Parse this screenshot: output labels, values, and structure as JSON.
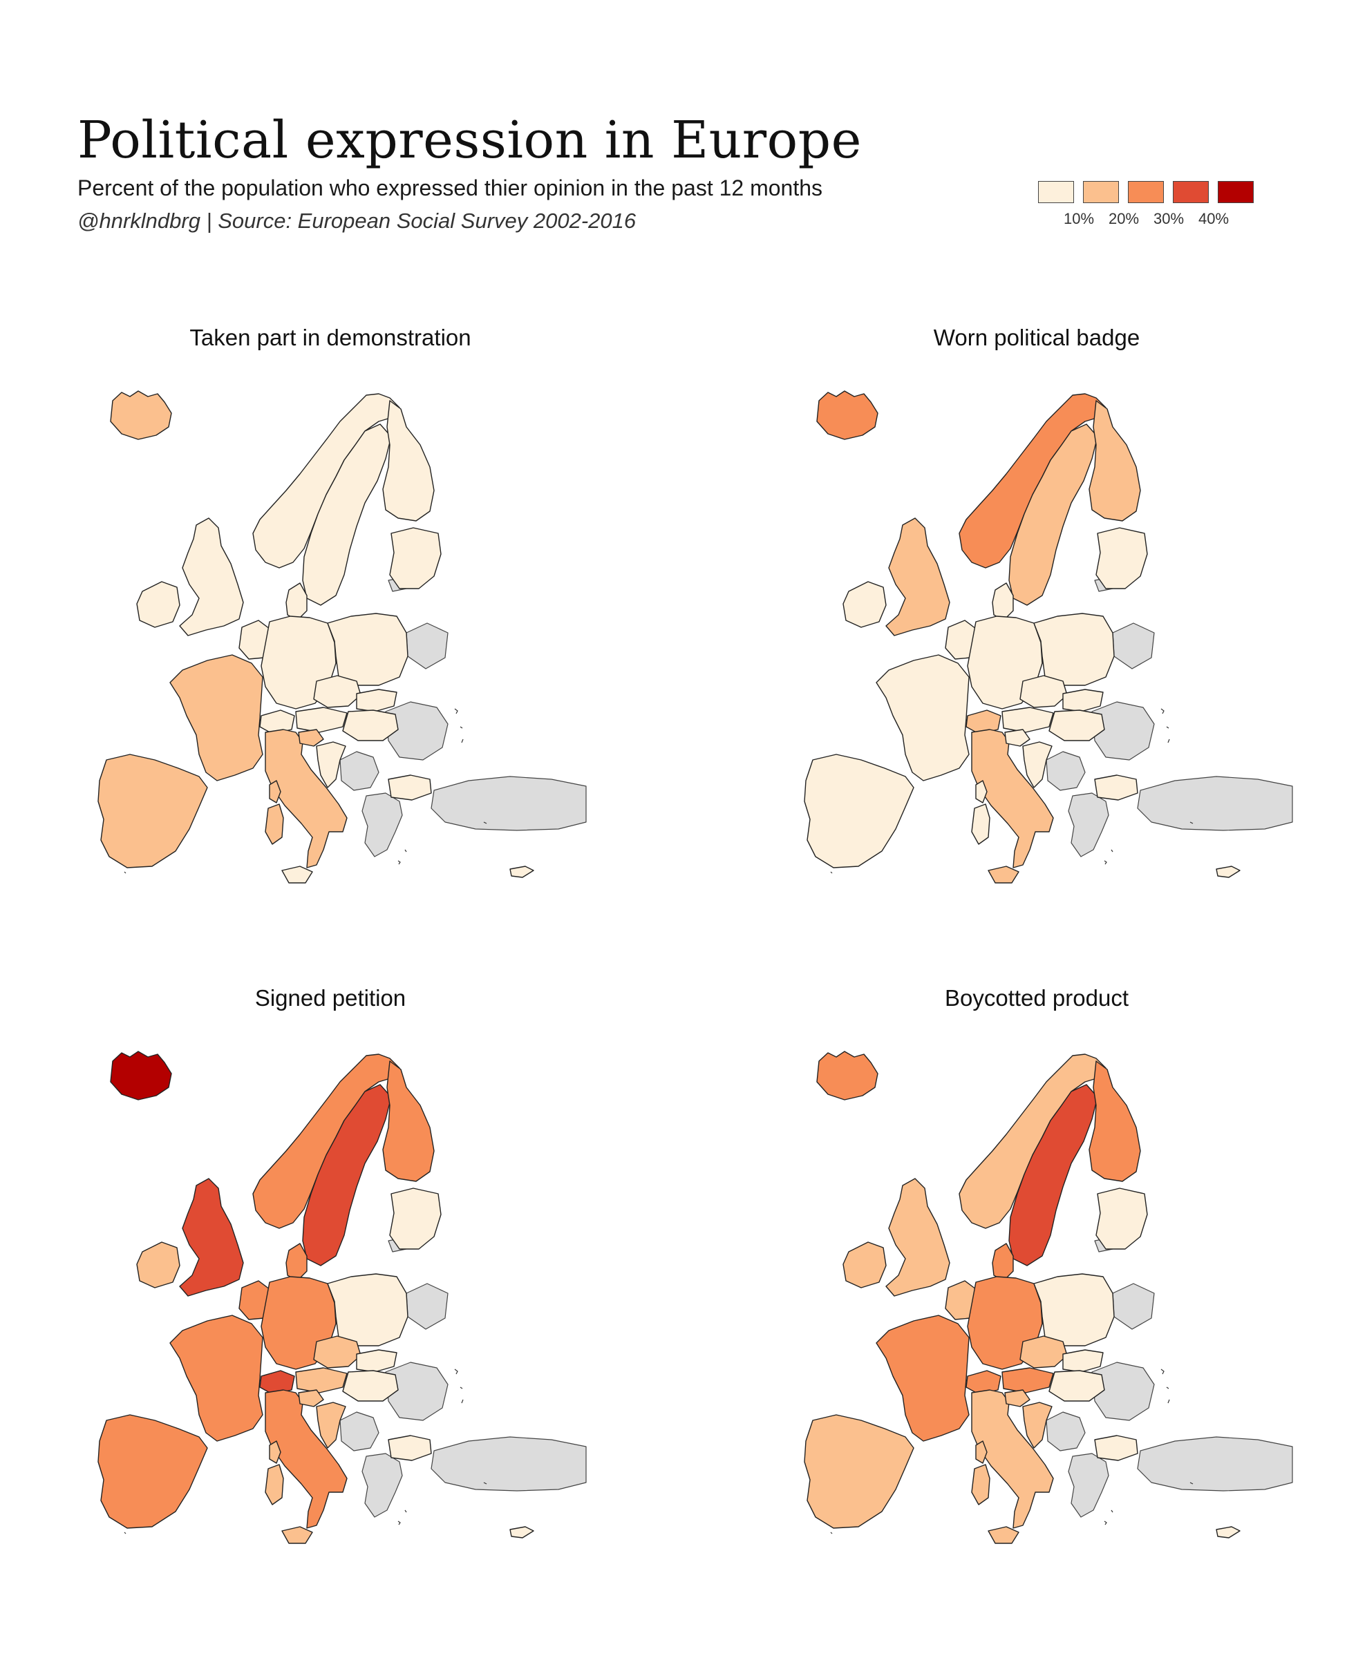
{
  "header": {
    "title": "Political expression in Europe",
    "subtitle": "Percent of the population who expressed thier opinion in the past 12 months",
    "credit": "@hnrklndbrg | Source: European Social Survey 2002-2016"
  },
  "legend": {
    "colors": [
      "#fdf0dc",
      "#fbc08e",
      "#f78d56",
      "#e04b33",
      "#b30000"
    ],
    "ticks": [
      "10%",
      "20%",
      "30%",
      "40%"
    ]
  },
  "nodata_color": "#dcdcdc",
  "panels": [
    {
      "title": "Taken part in demonstration",
      "levels": {
        "iceland": 1,
        "norway": 0,
        "sweden": 0,
        "finland": 0,
        "baltics": 0,
        "uk": 0,
        "ireland": 0,
        "denmark": 0,
        "benelux": 0,
        "germany": 0,
        "poland": 0,
        "czech": 0,
        "slovakia": 0,
        "hungary": 0,
        "austria": 0,
        "switzerland": 0,
        "france": 1,
        "iberia": 1,
        "italy": 1,
        "slovenia": 1,
        "croatia": 0,
        "bulgaria": 0,
        "sardinia": 1,
        "corsica": 1,
        "sicily": 0,
        "cyprus": 0
      }
    },
    {
      "title": "Worn political badge",
      "levels": {
        "iceland": 2,
        "norway": 2,
        "sweden": 1,
        "finland": 1,
        "baltics": 0,
        "uk": 1,
        "ireland": 0,
        "denmark": 0,
        "benelux": 0,
        "germany": 0,
        "poland": 0,
        "czech": 0,
        "slovakia": 0,
        "hungary": 0,
        "austria": 0,
        "switzerland": 1,
        "france": 0,
        "iberia": 0,
        "italy": 1,
        "slovenia": 0,
        "croatia": 0,
        "bulgaria": 0,
        "sardinia": 0,
        "corsica": 0,
        "sicily": 1,
        "cyprus": 0
      }
    },
    {
      "title": "Signed petition",
      "levels": {
        "iceland": 4,
        "norway": 2,
        "sweden": 3,
        "finland": 2,
        "baltics": 0,
        "uk": 3,
        "ireland": 1,
        "denmark": 2,
        "benelux": 2,
        "germany": 2,
        "poland": 0,
        "czech": 1,
        "slovakia": 0,
        "hungary": 0,
        "austria": 1,
        "switzerland": 3,
        "france": 2,
        "iberia": 2,
        "italy": 2,
        "slovenia": 1,
        "croatia": 1,
        "bulgaria": 0,
        "sardinia": 1,
        "corsica": 1,
        "sicily": 1,
        "cyprus": 0
      }
    },
    {
      "title": "Boycotted product",
      "levels": {
        "iceland": 2,
        "norway": 1,
        "sweden": 3,
        "finland": 2,
        "baltics": 0,
        "uk": 1,
        "ireland": 1,
        "denmark": 2,
        "benelux": 1,
        "germany": 2,
        "poland": 0,
        "czech": 1,
        "slovakia": 0,
        "hungary": 0,
        "austria": 2,
        "switzerland": 2,
        "france": 2,
        "iberia": 1,
        "italy": 1,
        "slovenia": 1,
        "croatia": 1,
        "bulgaria": 0,
        "sardinia": 1,
        "corsica": 1,
        "sicily": 1,
        "cyprus": 0
      }
    }
  ]
}
